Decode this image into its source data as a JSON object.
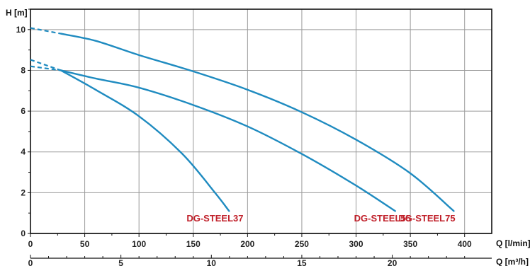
{
  "chart_data": {
    "type": "line",
    "title": "",
    "ylabel": "H [m]",
    "xlabel": "Q [l/min]",
    "x2label": "Q [m³/h]",
    "xlim": [
      0,
      425
    ],
    "ylim": [
      0,
      11
    ],
    "x_ticks": [
      0,
      50,
      100,
      150,
      200,
      250,
      300,
      350,
      400
    ],
    "x2_ticks": [
      0,
      5,
      10,
      15,
      20
    ],
    "y_ticks": [
      0,
      2,
      4,
      6,
      8,
      10
    ],
    "grid": true,
    "legend": "none",
    "line_color": "#1f8bc0",
    "label_color": "#c0202a",
    "series": [
      {
        "name": "DG-STEEL75",
        "dashed": {
          "x": [
            0,
            28
          ],
          "y": [
            10.08,
            9.8
          ]
        },
        "x": [
          28,
          60,
          100,
          150,
          200,
          250,
          300,
          350,
          390
        ],
        "y": [
          9.8,
          9.45,
          8.75,
          7.95,
          7.05,
          5.95,
          4.6,
          2.95,
          1.1
        ]
      },
      {
        "name": "DG-STEEL55",
        "dashed": {
          "x": [
            0,
            28
          ],
          "y": [
            8.2,
            8.0
          ]
        },
        "x": [
          28,
          60,
          100,
          150,
          200,
          250,
          300,
          336
        ],
        "y": [
          8.0,
          7.6,
          7.15,
          6.3,
          5.25,
          3.9,
          2.35,
          1.1
        ]
      },
      {
        "name": "DG-STEEL37",
        "dashed": {
          "x": [
            0,
            28
          ],
          "y": [
            8.52,
            8.0
          ]
        },
        "x": [
          28,
          60,
          100,
          140,
          170,
          183
        ],
        "y": [
          8.0,
          7.05,
          5.75,
          3.9,
          2.0,
          1.1
        ]
      }
    ]
  }
}
